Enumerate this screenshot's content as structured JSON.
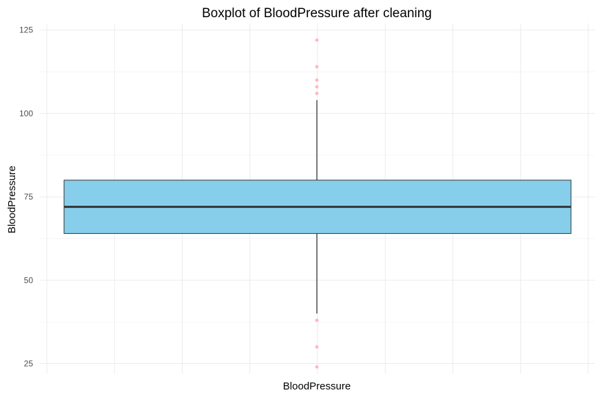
{
  "chart_data": {
    "type": "boxplot",
    "title": "Boxplot of BloodPressure after cleaning",
    "xlabel": "BloodPressure",
    "ylabel": "BloodPressure",
    "ylim": [
      22,
      127
    ],
    "yticks": [
      25,
      50,
      75,
      100,
      125
    ],
    "grid": true,
    "box": {
      "min": 40,
      "q1": 64,
      "median": 72,
      "q3": 80,
      "max": 104,
      "fill": "#87ceeb",
      "outline": "#333333"
    },
    "outliers": [
      24,
      30,
      38,
      106,
      108,
      110,
      114,
      122
    ],
    "outlier_color": "#ffb6c1"
  }
}
